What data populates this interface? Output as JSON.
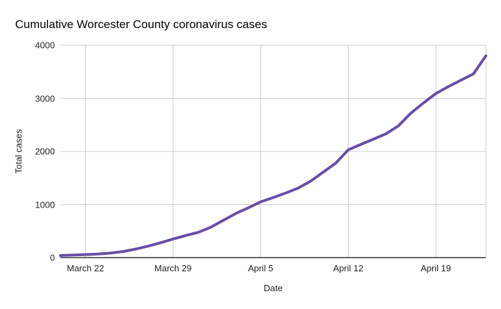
{
  "title": "Cumulative Worcester County coronavirus cases",
  "chart_data": {
    "type": "line",
    "title": "Cumulative Worcester County coronavirus cases",
    "xlabel": "Date",
    "ylabel": "Total cases",
    "x": [
      "March 20",
      "March 21",
      "March 22",
      "March 23",
      "March 24",
      "March 25",
      "March 26",
      "March 27",
      "March 28",
      "March 29",
      "March 30",
      "March 31",
      "April 1",
      "April 2",
      "April 3",
      "April 4",
      "April 5",
      "April 6",
      "April 7",
      "April 8",
      "April 9",
      "April 10",
      "April 11",
      "April 12",
      "April 13",
      "April 14",
      "April 15",
      "April 16",
      "April 17",
      "April 18",
      "April 19",
      "April 20",
      "April 21",
      "April 22",
      "April 23"
    ],
    "values": [
      40,
      48,
      57,
      68,
      85,
      115,
      160,
      215,
      280,
      350,
      415,
      475,
      570,
      700,
      830,
      935,
      1050,
      1130,
      1215,
      1310,
      1440,
      1610,
      1780,
      2030,
      2130,
      2230,
      2330,
      2480,
      2720,
      2910,
      3090,
      3220,
      3340,
      3460,
      3800
    ],
    "x_tick_labels": [
      "March 22",
      "March 29",
      "April 5",
      "April 12",
      "April 19"
    ],
    "x_tick_indices": [
      2,
      9,
      16,
      23,
      30
    ],
    "y_ticks": [
      0,
      1000,
      2000,
      3000,
      4000
    ],
    "ylim": [
      0,
      4000
    ],
    "grid": true,
    "legend": "none",
    "line_color": "#674ea7",
    "line_width": 4,
    "gridline_color": "#cccccc",
    "axis_line_color": "#333333",
    "label_color": "#222222",
    "background_color": "#ffffff"
  }
}
